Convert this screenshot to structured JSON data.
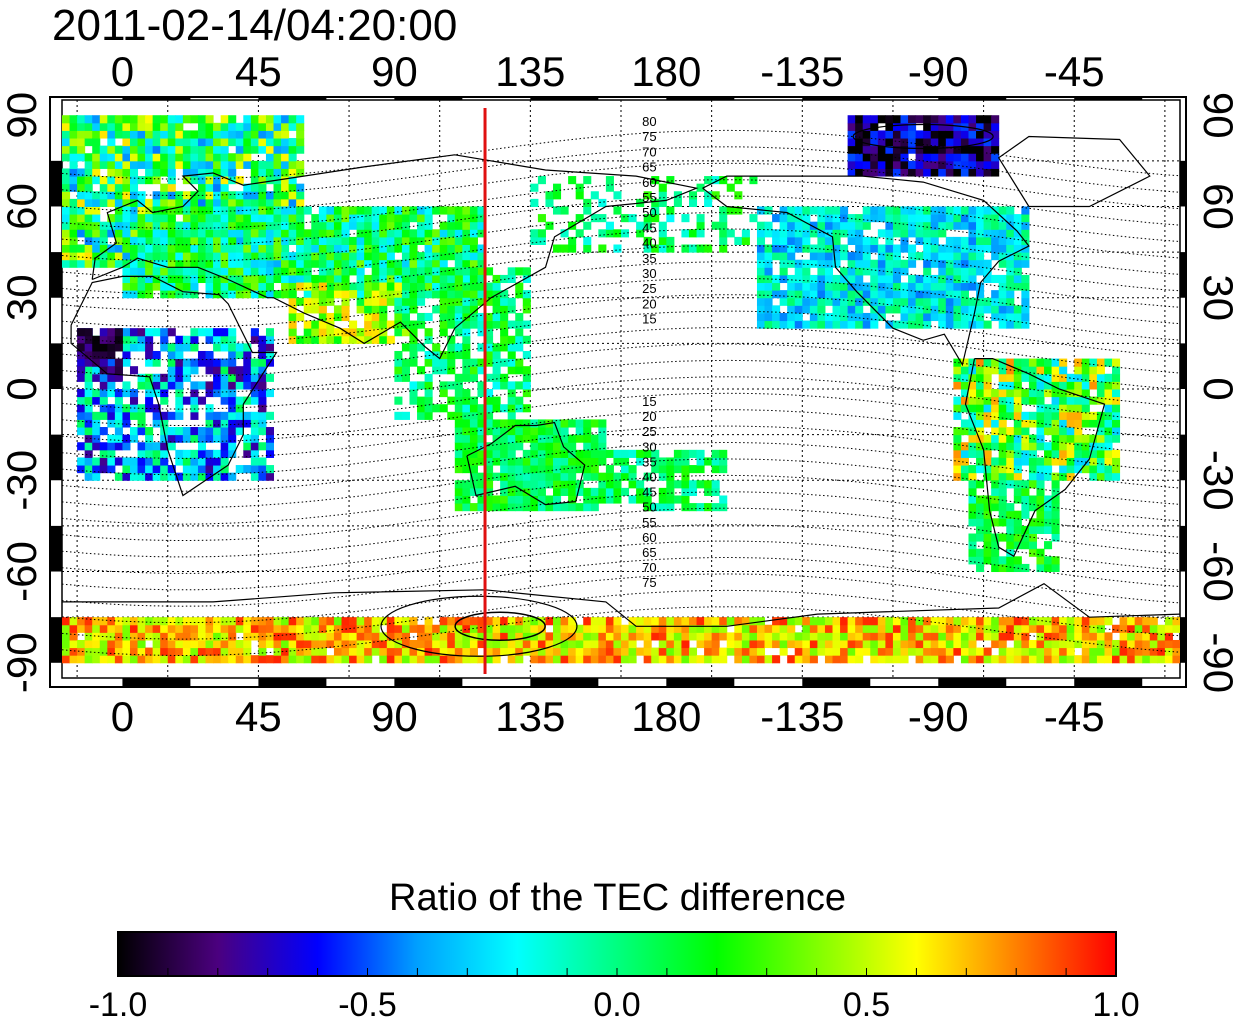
{
  "title": "2011-02-14/04:20:00",
  "map": {
    "lon_ticks": [
      {
        "lon": 0,
        "label": "0"
      },
      {
        "lon": 45,
        "label": "45"
      },
      {
        "lon": 90,
        "label": "90"
      },
      {
        "lon": 135,
        "label": "135"
      },
      {
        "lon": 180,
        "label": "180"
      },
      {
        "lon": 225,
        "label": "-135"
      },
      {
        "lon": 270,
        "label": "-90"
      },
      {
        "lon": 315,
        "label": "-45"
      }
    ],
    "lat_ticks": [
      {
        "lat": 90,
        "label": "90"
      },
      {
        "lat": 60,
        "label": "60"
      },
      {
        "lat": 30,
        "label": "30"
      },
      {
        "lat": 0,
        "label": "0"
      },
      {
        "lat": -30,
        "label": "-30"
      },
      {
        "lat": -60,
        "label": "-60"
      },
      {
        "lat": -90,
        "label": "-90"
      }
    ],
    "lon_range": [
      -20,
      350
    ],
    "lat_range": [
      -95,
      95
    ],
    "grid": true,
    "marker_line_lon": 120,
    "marker_line_color": "#e01010",
    "contour_labels_north": [
      "80",
      "75",
      "70",
      "65",
      "60",
      "55",
      "50",
      "45",
      "40",
      "35",
      "30",
      "25",
      "20",
      "15"
    ],
    "contour_labels_south": [
      "15",
      "20",
      "25",
      "30",
      "35",
      "40",
      "45",
      "50",
      "55",
      "60",
      "65",
      "70",
      "75"
    ]
  },
  "colorbar": {
    "title": "Ratio of the TEC difference",
    "ticks": [
      {
        "value": -1.0,
        "label": "-1.0"
      },
      {
        "value": -0.5,
        "label": "-0.5"
      },
      {
        "value": 0.0,
        "label": "0.0"
      },
      {
        "value": 0.5,
        "label": "0.5"
      },
      {
        "value": 1.0,
        "label": "1.0"
      }
    ],
    "range": [
      -1.0,
      1.0
    ],
    "colors": [
      "#000000",
      "#4b007f",
      "#0000ff",
      "#00a0ff",
      "#00ffff",
      "#00ff80",
      "#00ff00",
      "#80ff00",
      "#ffff00",
      "#ff8000",
      "#ff0000"
    ]
  }
}
